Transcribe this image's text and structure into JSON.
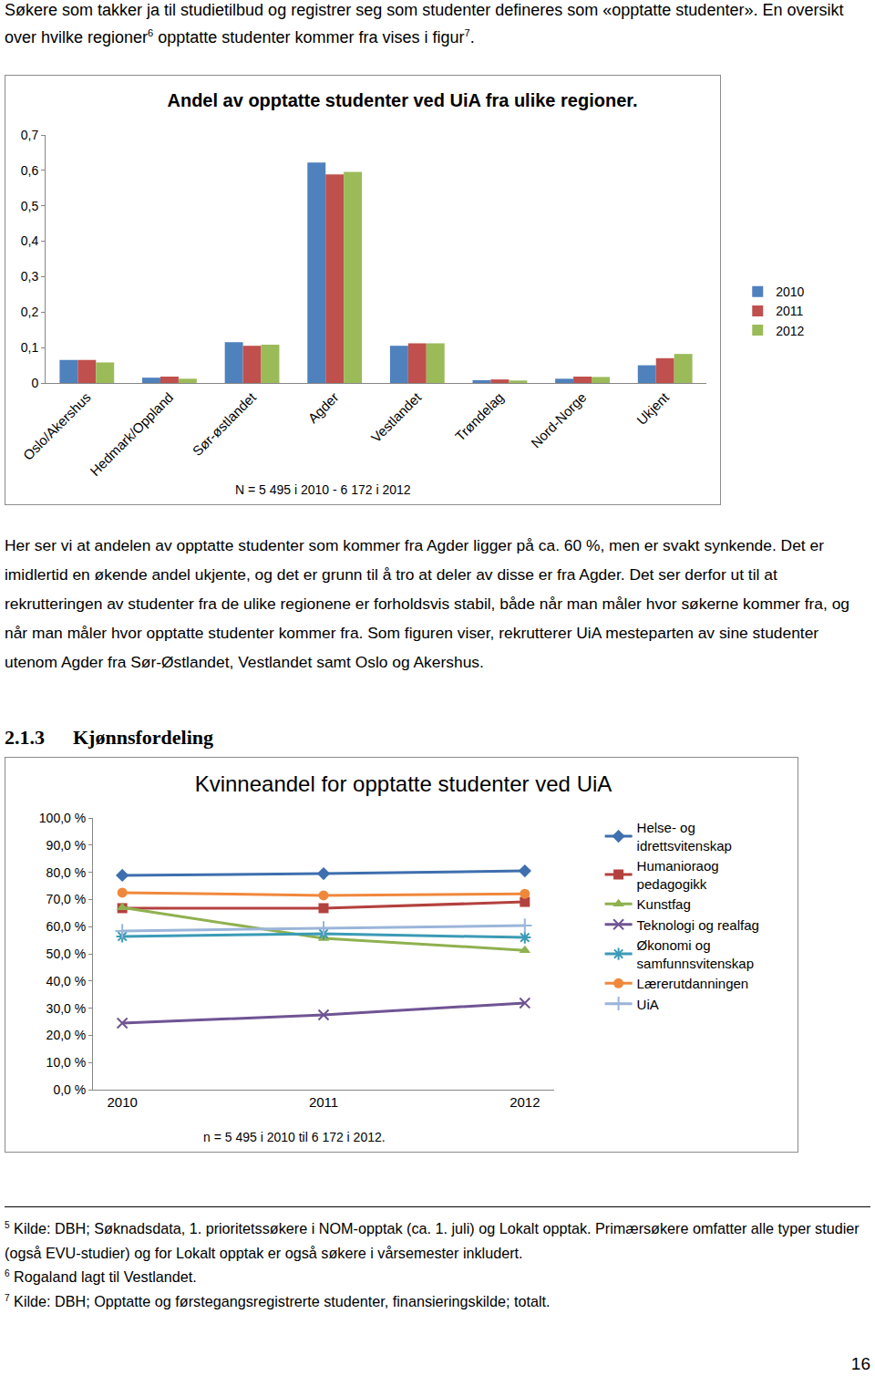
{
  "intro": [
    {
      "text": "Søkere som takker ja til studietilbud og registrer seg som studenter defineres som «opptatte studenter». En oversikt over hvilke regioner"
    },
    {
      "text": "6",
      "sup": true
    },
    {
      "text": " opptatte studenter kommer fra vises i figur"
    },
    {
      "text": "7",
      "sup": true
    },
    {
      "text": "."
    }
  ],
  "chart_data": [
    {
      "type": "bar",
      "title": "Andel av opptatte studenter ved UiA fra ulike regioner.",
      "annotation": "N = 5 495 i 2010 - 6 172 i 2012",
      "categories": [
        "Oslo/Akershus",
        "Hedmark/Oppland",
        "Sør-østlandet",
        "Agder",
        "Vestlandet",
        "Trøndelag",
        "Nord-Norge",
        "Ukjent"
      ],
      "series": [
        {
          "name": "2010",
          "color": "#4f81bd",
          "values": [
            0.065,
            0.015,
            0.115,
            0.622,
            0.105,
            0.008,
            0.012,
            0.05
          ]
        },
        {
          "name": "2011",
          "color": "#c0504d",
          "values": [
            0.065,
            0.018,
            0.105,
            0.589,
            0.112,
            0.01,
            0.018,
            0.07
          ]
        },
        {
          "name": "2012",
          "color": "#9bbb59",
          "values": [
            0.058,
            0.012,
            0.108,
            0.596,
            0.112,
            0.007,
            0.017,
            0.082
          ]
        }
      ],
      "ylim": [
        0,
        0.7
      ],
      "yticks": [
        0,
        {
          "value": 0.1,
          "label": "0,1"
        },
        {
          "value": 0.2,
          "label": "0,2"
        },
        {
          "value": 0.3,
          "label": "0,3"
        },
        {
          "value": 0.4,
          "label": "0,4"
        },
        {
          "value": 0.5,
          "label": "0,5"
        },
        {
          "value": 0.6,
          "label": "0,6"
        },
        {
          "value": 0.7,
          "label": "0,7"
        }
      ],
      "grid": false,
      "legend": "right"
    },
    {
      "type": "line",
      "title": "Kvinneandel for opptatte studenter ved UiA",
      "annotation": "n = 5 495 i 2010 til 6 172 i 2012.",
      "categories": [
        "2010",
        "2011",
        "2012"
      ],
      "series": [
        {
          "name": "Helse- og idrettsvitenskap",
          "color": "#3e6fae",
          "marker": "diamond",
          "values": [
            78.9,
            79.5,
            80.5
          ]
        },
        {
          "name": "Humanioraog pedagogikk",
          "color": "#b3413e",
          "marker": "square",
          "values": [
            66.8,
            66.8,
            69.1
          ]
        },
        {
          "name": "Kunstfag",
          "color": "#8fb14f",
          "marker": "triangle-up",
          "values": [
            67.0,
            55.7,
            51.3
          ]
        },
        {
          "name": "Teknologi og realfag",
          "color": "#6f5494",
          "marker": "x",
          "values": [
            24.5,
            27.5,
            31.9
          ]
        },
        {
          "name": "Økonomi og samfunnsvitenskap",
          "color": "#3b9bb6",
          "marker": "asterisk",
          "values": [
            56.4,
            57.4,
            56.0
          ]
        },
        {
          "name": "Lærerutdanningen",
          "color": "#f0883c",
          "marker": "circle",
          "values": [
            72.5,
            71.5,
            72.1
          ]
        },
        {
          "name": "UiA",
          "color": "#9bb5d9",
          "marker": "cross",
          "values": [
            58.4,
            59.4,
            60.4
          ]
        }
      ],
      "ylim": [
        0,
        100
      ],
      "yticks": [
        {
          "value": 0,
          "label": "0,0 %"
        },
        {
          "value": 10,
          "label": "10,0 %"
        },
        {
          "value": 20,
          "label": "20,0 %"
        },
        {
          "value": 30,
          "label": "30,0 %"
        },
        {
          "value": 40,
          "label": "40,0 %"
        },
        {
          "value": 50,
          "label": "50,0 %"
        },
        {
          "value": 60,
          "label": "60,0 %"
        },
        {
          "value": 70,
          "label": "70,0 %"
        },
        {
          "value": 80,
          "label": "80,0 %"
        },
        {
          "value": 90,
          "label": "90,0 %"
        },
        {
          "value": 100,
          "label": "100,0 %"
        }
      ],
      "grid": false,
      "legend": "top right"
    }
  ],
  "paragraph": "Her ser vi at andelen av opptatte studenter som kommer fra Agder ligger på ca. 60 %, men er svakt synkende. Det er imidlertid en økende andel ukjente, og det er grunn til å tro at deler av disse er fra Agder. Det ser derfor ut til at rekrutteringen av studenter fra de ulike regionene er forholdsvis stabil, både når man måler hvor søkerne kommer fra, og når man måler hvor opptatte studenter kommer fra. Som figuren viser, rekrutterer UiA mesteparten av sine studenter utenom Agder fra Sør-Østlandet, Vestlandet samt Oslo og Akershus.",
  "heading": {
    "number": "2.1.3",
    "text": "Kjønnsfordeling"
  },
  "footnotes": [
    {
      "mark": "5",
      "text": "Kilde: DBH; Søknadsdata, 1. prioritetssøkere i NOM-opptak (ca. 1. juli) og Lokalt opptak. Primærsøkere omfatter alle typer studier (også EVU-studier) og for Lokalt opptak er også søkere i vårsemester inkludert."
    },
    {
      "mark": "6",
      "text": "Rogaland lagt til Vestlandet."
    },
    {
      "mark": "7",
      "text": "Kilde: DBH; Opptatte og førstegangsregistrerte studenter, finansieringskilde; totalt."
    }
  ],
  "page_number": 16
}
